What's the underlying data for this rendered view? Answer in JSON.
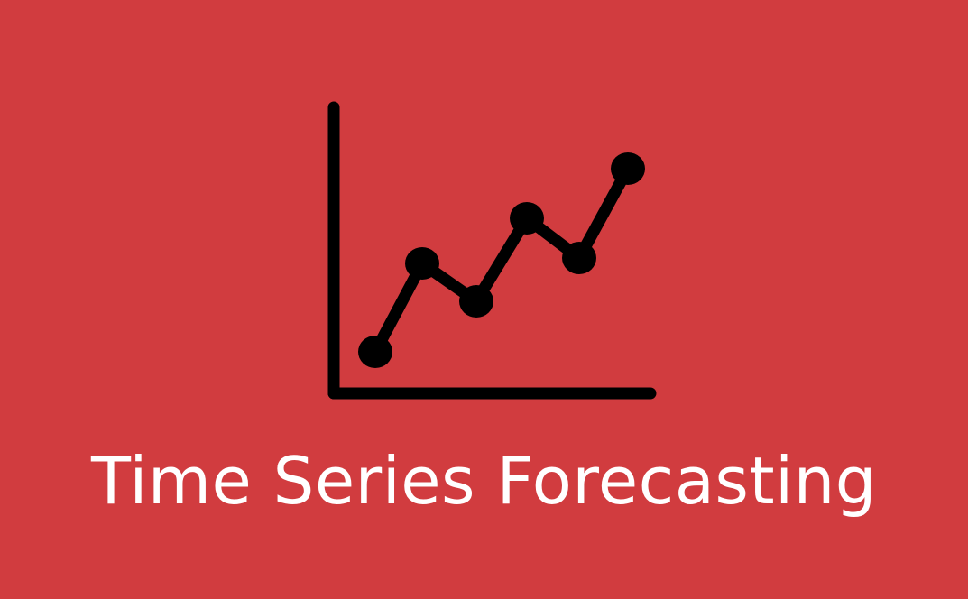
{
  "title": "Time Series Forecasting",
  "colors": {
    "background": "#d13c3f",
    "icon": "#000000",
    "title": "#ffffff"
  },
  "icon": {
    "name": "line-chart-icon",
    "points": [
      {
        "x": 1,
        "y": 1
      },
      {
        "x": 2,
        "y": 3
      },
      {
        "x": 3,
        "y": 2
      },
      {
        "x": 4,
        "y": 4
      },
      {
        "x": 5,
        "y": 3
      },
      {
        "x": 6,
        "y": 5
      }
    ]
  }
}
